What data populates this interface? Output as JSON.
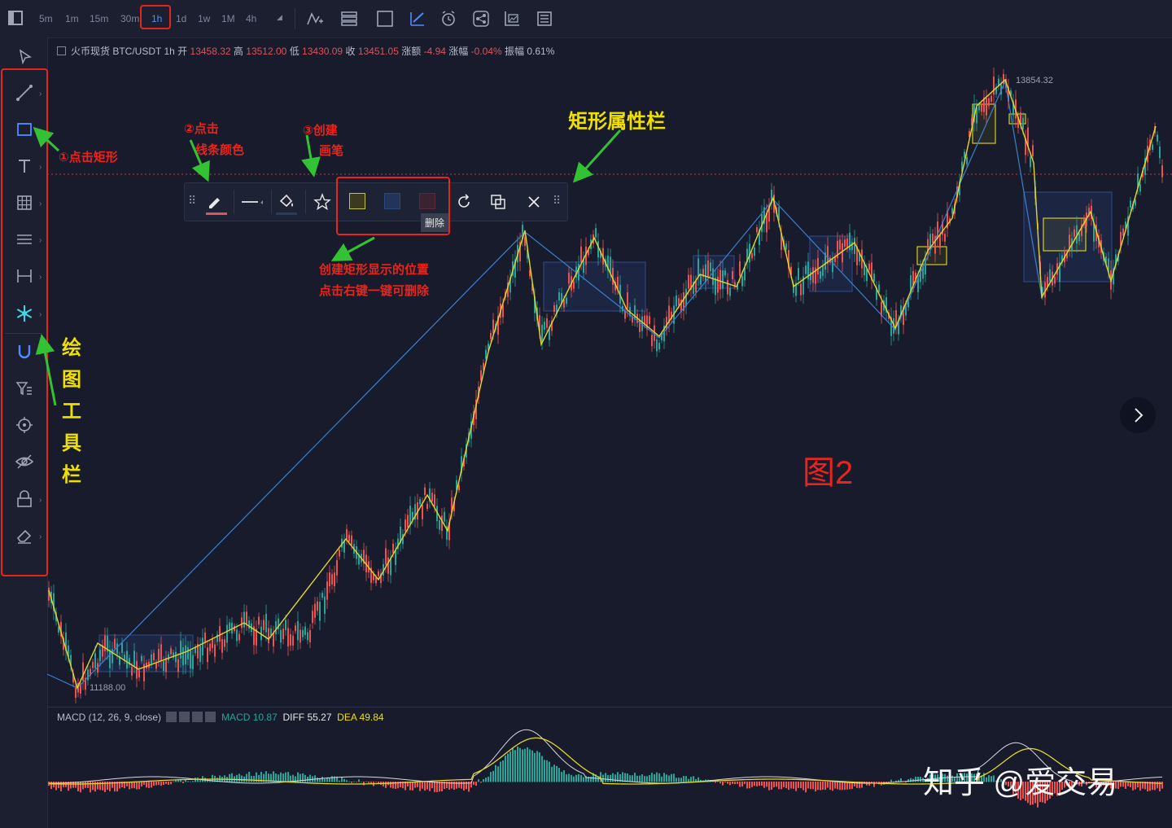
{
  "timeframes": [
    "5m",
    "1m",
    "15m",
    "30m",
    "1h",
    "1d",
    "1w",
    "1M",
    "4h"
  ],
  "active_timeframe": "1h",
  "info": {
    "exchange_pair": "火币现货 BTC/USDT 1h",
    "open_label": "开",
    "open": "13458.32",
    "high_label": "高",
    "high": "13512.00",
    "low_label": "低",
    "low": "13430.09",
    "close_label": "收",
    "close": "13451.05",
    "change_label": "涨额",
    "change": "-4.94",
    "change_pct_label": "涨幅",
    "change_pct": "-0.04%",
    "amp_label": "振幅",
    "amp": "0.61%"
  },
  "annotations": {
    "click_rect": "①点击矩形",
    "click_line_color_1": "②点击",
    "click_line_color_2": "线条颜色",
    "create_brush_1": "③创建",
    "create_brush_2": "画笔",
    "rect_prop_bar": "矩形属性栏",
    "rect_pos_1": "创建矩形显示的位置",
    "rect_pos_2": "点击右键一键可删除",
    "drawing_toolbar": [
      "绘",
      "图",
      "工",
      "具",
      "栏"
    ],
    "figure": "图2",
    "watermark": "知乎 @爱交易"
  },
  "tooltip_delete": "删除",
  "price_high_label": "13854.32",
  "price_low_label": "11188.00",
  "macd": {
    "title": "MACD (12, 26, 9, close)",
    "macd_label": "MACD",
    "macd_value": "10.87",
    "diff_label": "DIFF",
    "diff_value": "55.27",
    "dea_label": "DEA",
    "dea_value": "49.84"
  },
  "colors": {
    "background": "#171b2b",
    "up": "#26a69a",
    "down": "#ef5350",
    "accent": "#4f8cff",
    "annotation_red": "#e8241c",
    "annotation_yellow": "#f0e000",
    "arrow_green": "#33c233"
  },
  "icons": {
    "left_tools": [
      "cursor-icon",
      "trendline-icon",
      "rectangle-icon",
      "text-icon",
      "grid-icon",
      "fib-icon",
      "measure-icon",
      "snowflake-icon",
      "magnet-icon",
      "filter-icon",
      "crosshair-icon",
      "eye-icon",
      "lock-icon",
      "eraser-icon"
    ],
    "float_tools": [
      "pen-icon",
      "line-style-icon",
      "fill-icon",
      "star-icon",
      "color-swatch-yellow",
      "color-swatch-blue",
      "color-swatch-red",
      "refresh-icon",
      "copy-icon",
      "close-icon"
    ]
  }
}
